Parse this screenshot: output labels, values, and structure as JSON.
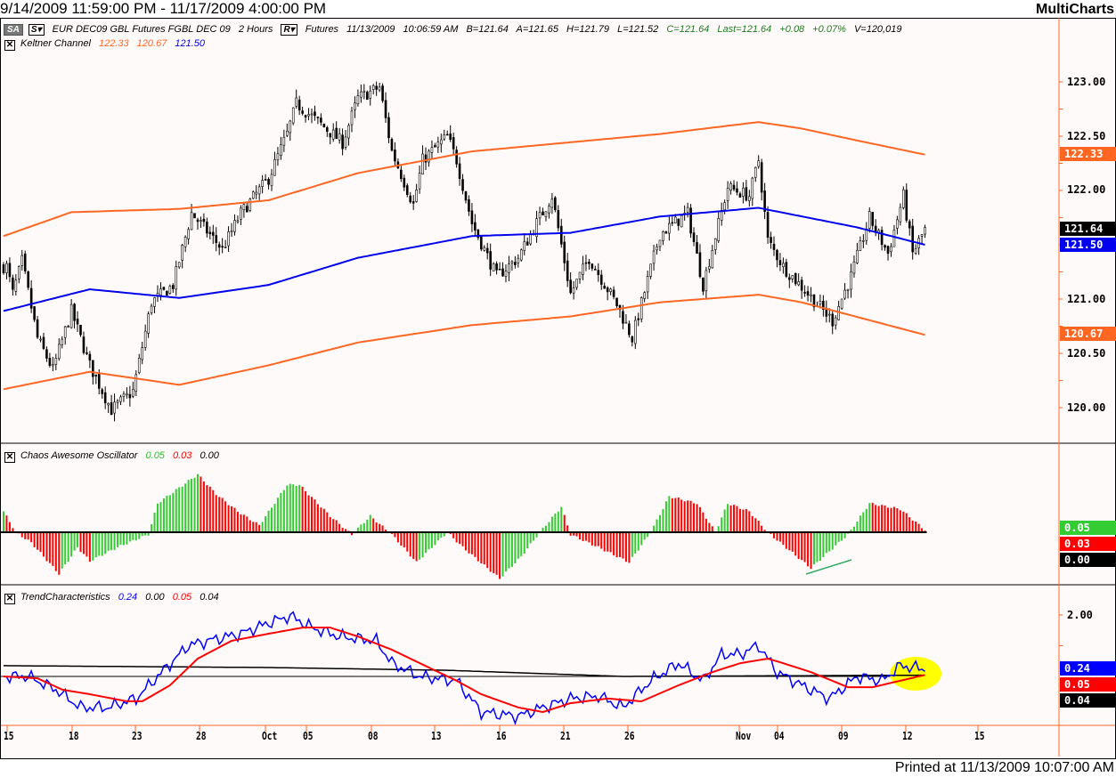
{
  "title_bar": {
    "date_range": "9/14/2009 11:59:00 PM - 11/17/2009 4:00:00 PM",
    "brand": "MultiCharts"
  },
  "symbol_bar": {
    "sa_label": "SA",
    "s_label": "S▾",
    "symbol": "EUR DEC09 GBL Futures FGBL DEC 09",
    "interval": "2 Hours",
    "r_label": "R▾",
    "category": "Futures",
    "date": "11/13/2009",
    "time": "10:06:59 AM",
    "bid": "B=121.64",
    "ask": "A=121.65",
    "high": "H=121.79",
    "low": "L=121.52",
    "close": "C=121.64",
    "last": "Last=121.64",
    "change": "+0.08",
    "change_pct": "+0.07%",
    "volume": "V=120,019"
  },
  "colors": {
    "upper": "#ff6622",
    "middle": "#0000ee",
    "lower": "#ff6622",
    "ao_up": "#33cc33",
    "ao_down": "#ff0000",
    "trend_blue": "#0000ff",
    "trend_red": "#ff0000",
    "highlight": "#ffff00"
  },
  "indicators": {
    "keltner": {
      "name": "Keltner Channel",
      "v1": "122.33",
      "v2": "120.67",
      "v3": "121.50"
    },
    "ao": {
      "name": "Chaos Awesome Oscillator",
      "v1": "0.05",
      "v2": "0.03",
      "v3": "0.00"
    },
    "trend": {
      "name": "TrendCharacteristics",
      "v1": "0.24",
      "v2": "0.00",
      "v3": "0.05",
      "v4": "0.04"
    }
  },
  "price_axis": {
    "ticks": [
      "123.00",
      "122.50",
      "122.00",
      "121.00",
      "120.50",
      "120.00"
    ],
    "last": "121.64",
    "upper": "122.33",
    "middle": "121.50",
    "lower": "120.67"
  },
  "ao_axis": {
    "v1": "0.05",
    "v2": "0.03",
    "v3": "0.00"
  },
  "trend_axis": {
    "tick": "2.00",
    "v1": "0.24",
    "v2": "0.05",
    "v3": "0.04"
  },
  "date_axis": [
    "15",
    "18",
    "23",
    "28",
    "Oct",
    "05",
    "08",
    "13",
    "16",
    "21",
    "26",
    "Nov",
    "04",
    "09",
    "12",
    "15"
  ],
  "footer": {
    "printed": "Printed at 11/13/2009 10:07:00 AM"
  },
  "chart_data": {
    "type": "candlestick",
    "bars": 300,
    "price_range": [
      119.75,
      123.2
    ],
    "price_path": [
      [
        1,
        121.3
      ],
      [
        3,
        121.05
      ],
      [
        6,
        121.35
      ],
      [
        11,
        120.64
      ],
      [
        16,
        120.35
      ],
      [
        22,
        120.89
      ],
      [
        28,
        120.39
      ],
      [
        35,
        119.98
      ],
      [
        42,
        120.15
      ],
      [
        48,
        120.97
      ],
      [
        55,
        121.13
      ],
      [
        61,
        121.79
      ],
      [
        71,
        121.46
      ],
      [
        77,
        121.79
      ],
      [
        86,
        122.11
      ],
      [
        92,
        122.52
      ],
      [
        95,
        122.8
      ],
      [
        103,
        122.61
      ],
      [
        110,
        122.44
      ],
      [
        115,
        122.85
      ],
      [
        122,
        122.95
      ],
      [
        126,
        122.36
      ],
      [
        133,
        121.87
      ],
      [
        136,
        122.28
      ],
      [
        144,
        122.5
      ],
      [
        147,
        122.28
      ],
      [
        152,
        121.7
      ],
      [
        160,
        121.21
      ],
      [
        167,
        121.38
      ],
      [
        173,
        121.7
      ],
      [
        178,
        121.95
      ],
      [
        184,
        121.05
      ],
      [
        190,
        121.38
      ],
      [
        199,
        120.95
      ],
      [
        204,
        120.64
      ],
      [
        213,
        121.6
      ],
      [
        222,
        121.79
      ],
      [
        227,
        121.13
      ],
      [
        235,
        122.03
      ],
      [
        242,
        121.95
      ],
      [
        245,
        122.28
      ],
      [
        248,
        121.54
      ],
      [
        253,
        121.3
      ],
      [
        261,
        121.05
      ],
      [
        269,
        120.8
      ],
      [
        275,
        121.21
      ],
      [
        281,
        121.75
      ],
      [
        287,
        121.42
      ],
      [
        292,
        121.95
      ],
      [
        295,
        121.42
      ],
      [
        299,
        121.64
      ]
    ],
    "keltner_upper": [
      [
        0,
        121.58
      ],
      [
        22,
        121.8
      ],
      [
        57,
        121.83
      ],
      [
        86,
        121.91
      ],
      [
        115,
        122.16
      ],
      [
        152,
        122.36
      ],
      [
        213,
        122.52
      ],
      [
        245,
        122.63
      ],
      [
        259,
        122.57
      ],
      [
        277,
        122.46
      ],
      [
        299,
        122.33
      ]
    ],
    "keltner_middle": [
      [
        0,
        120.89
      ],
      [
        28,
        121.09
      ],
      [
        57,
        121.01
      ],
      [
        86,
        121.13
      ],
      [
        115,
        121.38
      ],
      [
        152,
        121.58
      ],
      [
        184,
        121.61
      ],
      [
        213,
        121.76
      ],
      [
        245,
        121.84
      ],
      [
        277,
        121.66
      ],
      [
        299,
        121.5
      ]
    ],
    "keltner_lower": [
      [
        0,
        120.17
      ],
      [
        28,
        120.33
      ],
      [
        57,
        120.21
      ],
      [
        86,
        120.39
      ],
      [
        115,
        120.6
      ],
      [
        152,
        120.76
      ],
      [
        184,
        120.84
      ],
      [
        213,
        120.97
      ],
      [
        245,
        121.04
      ],
      [
        259,
        120.97
      ],
      [
        299,
        120.67
      ]
    ],
    "ao": [
      [
        0,
        0.18
      ],
      [
        4,
        0
      ],
      [
        9,
        -0.09
      ],
      [
        18,
        -0.36
      ],
      [
        24,
        -0.13
      ],
      [
        28,
        -0.25
      ],
      [
        37,
        -0.13
      ],
      [
        47,
        -0.02
      ],
      [
        50,
        0.25
      ],
      [
        63,
        0.5
      ],
      [
        69,
        0.33
      ],
      [
        76,
        0.18
      ],
      [
        83,
        0.06
      ],
      [
        92,
        0.41
      ],
      [
        96,
        0.41
      ],
      [
        106,
        0.14
      ],
      [
        113,
        -0.02
      ],
      [
        119,
        0.14
      ],
      [
        126,
        -0.02
      ],
      [
        134,
        -0.26
      ],
      [
        144,
        0
      ],
      [
        149,
        -0.13
      ],
      [
        161,
        -0.4
      ],
      [
        168,
        -0.21
      ],
      [
        174,
        0
      ],
      [
        181,
        0.22
      ],
      [
        184,
        -0.02
      ],
      [
        193,
        -0.13
      ],
      [
        203,
        -0.26
      ],
      [
        210,
        0
      ],
      [
        216,
        0.31
      ],
      [
        225,
        0.25
      ],
      [
        231,
        0
      ],
      [
        235,
        0.25
      ],
      [
        242,
        0.18
      ],
      [
        248,
        0
      ],
      [
        252,
        -0.09
      ],
      [
        262,
        -0.31
      ],
      [
        274,
        -0.02
      ],
      [
        281,
        0.25
      ],
      [
        291,
        0.2
      ],
      [
        299,
        0.02
      ]
    ],
    "trend_blue": [
      [
        0,
        0
      ],
      [
        8,
        0
      ],
      [
        17,
        -0.43
      ],
      [
        25,
        -1.01
      ],
      [
        34,
        -1.01
      ],
      [
        43,
        -0.72
      ],
      [
        50,
        0
      ],
      [
        60,
        1.01
      ],
      [
        69,
        1.22
      ],
      [
        77,
        1.39
      ],
      [
        86,
        1.74
      ],
      [
        93,
        1.97
      ],
      [
        100,
        1.59
      ],
      [
        109,
        1.3
      ],
      [
        121,
        1.16
      ],
      [
        126,
        0.43
      ],
      [
        135,
        0
      ],
      [
        147,
        -0.14
      ],
      [
        155,
        -1.16
      ],
      [
        167,
        -1.3
      ],
      [
        175,
        -1.01
      ],
      [
        184,
        -0.72
      ],
      [
        193,
        -0.64
      ],
      [
        201,
        -1.01
      ],
      [
        210,
        -0.14
      ],
      [
        219,
        0.43
      ],
      [
        227,
        -0.14
      ],
      [
        233,
        0.72
      ],
      [
        239,
        0.72
      ],
      [
        245,
        1.01
      ],
      [
        251,
        0.14
      ],
      [
        259,
        -0.29
      ],
      [
        268,
        -0.72
      ],
      [
        277,
        0
      ],
      [
        285,
        -0.14
      ],
      [
        291,
        0.35
      ],
      [
        299,
        0.24
      ]
    ],
    "trend_red": [
      [
        0,
        0
      ],
      [
        11,
        -0.06
      ],
      [
        19,
        -0.43
      ],
      [
        28,
        -0.58
      ],
      [
        40,
        -0.81
      ],
      [
        45,
        -0.81
      ],
      [
        54,
        -0.29
      ],
      [
        63,
        0.58
      ],
      [
        74,
        1.16
      ],
      [
        86,
        1.39
      ],
      [
        97,
        1.59
      ],
      [
        106,
        1.59
      ],
      [
        115,
        1.3
      ],
      [
        126,
        0.87
      ],
      [
        138,
        0.29
      ],
      [
        147,
        -0.14
      ],
      [
        155,
        -0.58
      ],
      [
        167,
        -1.01
      ],
      [
        175,
        -1.16
      ],
      [
        184,
        -0.87
      ],
      [
        196,
        -0.72
      ],
      [
        207,
        -0.81
      ],
      [
        219,
        -0.29
      ],
      [
        230,
        0.14
      ],
      [
        239,
        0.43
      ],
      [
        248,
        0.58
      ],
      [
        253,
        0.43
      ],
      [
        262,
        0.14
      ],
      [
        274,
        -0.35
      ],
      [
        282,
        -0.35
      ],
      [
        291,
        -0.14
      ],
      [
        299,
        0.05
      ]
    ],
    "trend_black": [
      [
        0,
        0.35
      ],
      [
        86,
        0.29
      ],
      [
        144,
        0.2
      ],
      [
        201,
        0
      ],
      [
        299,
        0.04
      ]
    ],
    "trend_zero": 0
  }
}
